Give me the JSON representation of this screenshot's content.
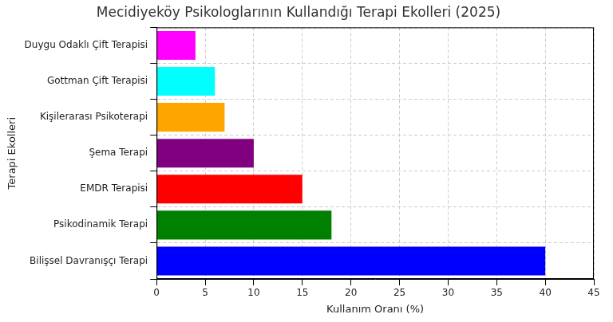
{
  "chart_data": {
    "type": "bar",
    "orientation": "horizontal",
    "title": "Mecidiyeköy Psikologlarının Kullandığı Terapi Ekolleri (2025)",
    "x_label": "Kullanım Oranı (%)",
    "y_label": "Terapi Ekolleri",
    "categories": [
      "Duygu Odaklı Çift Terapisi",
      "Gottman Çift Terapisi",
      "Kişilerarası Psikoterapi",
      "Şema Terapi",
      "EMDR Terapisi",
      "Psikodinamik Terapi",
      "Bilişsel Davranışçı Terapi"
    ],
    "values": [
      4,
      6,
      7,
      10,
      15,
      18,
      40
    ],
    "colors": [
      "#ff00ff",
      "#00ffff",
      "#ffa500",
      "#800080",
      "#ff0000",
      "#008000",
      "#0000ff"
    ],
    "xlim": [
      0,
      45
    ],
    "xticks": [
      0,
      5,
      10,
      15,
      20,
      25,
      30,
      35,
      40,
      45
    ],
    "grid": true
  }
}
